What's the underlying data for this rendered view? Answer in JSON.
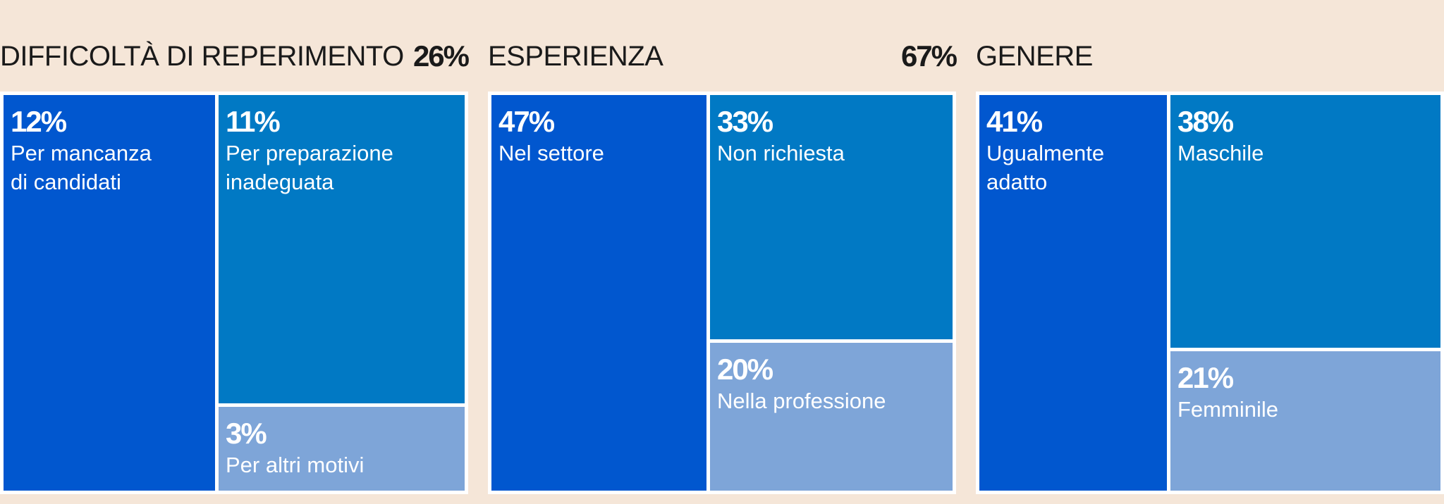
{
  "chart_data": [
    {
      "type": "treemap",
      "title": "DIFFICOLTÀ DI REPERIMENTO",
      "total": "26%",
      "items": [
        {
          "value": 12,
          "percent_label": "12%",
          "label": "Per mancanza\ndi candidati",
          "color": "#0157cf"
        },
        {
          "value": 11,
          "percent_label": "11%",
          "label": "Per preparazione\ninadeguata",
          "color": "#0179c4"
        },
        {
          "value": 3,
          "percent_label": "3%",
          "label": "Per altri motivi",
          "color": "#7ea5d8"
        }
      ]
    },
    {
      "type": "treemap",
      "title": "ESPERIENZA",
      "total": "67%",
      "items": [
        {
          "value": 47,
          "percent_label": "47%",
          "label": "Nel settore",
          "color": "#0157cf"
        },
        {
          "value": 33,
          "percent_label": "33%",
          "label": "Non richiesta",
          "color": "#0179c4"
        },
        {
          "value": 20,
          "percent_label": "20%",
          "label": "Nella professione",
          "color": "#7ea5d8"
        }
      ]
    },
    {
      "type": "treemap",
      "title": "GENERE",
      "items": [
        {
          "value": 41,
          "percent_label": "41%",
          "label": "Ugualmente\nadatto",
          "color": "#0157cf"
        },
        {
          "value": 38,
          "percent_label": "38%",
          "label": "Maschile",
          "color": "#0179c4"
        },
        {
          "value": 21,
          "percent_label": "21%",
          "label": "Femminile",
          "color": "#7ea5d8"
        }
      ]
    }
  ]
}
